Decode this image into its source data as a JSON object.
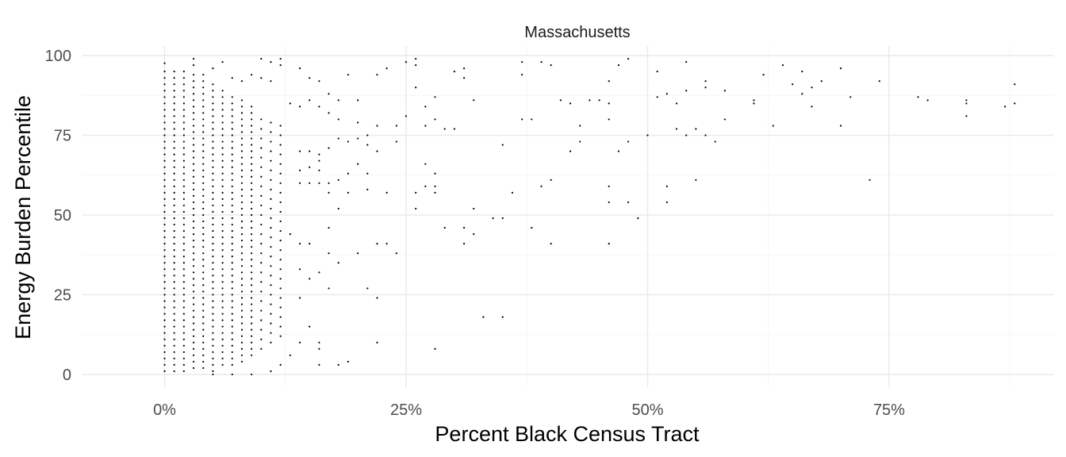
{
  "chart_data": {
    "type": "scatter",
    "facet_title": "Massachusetts",
    "xlabel": "Percent Black Census Tract",
    "ylabel": "Energy Burden Percentile",
    "xlim": [
      -0.085,
      0.92
    ],
    "ylim": [
      -4,
      103
    ],
    "x_ticks": [
      {
        "value": 0,
        "label": "0%"
      },
      {
        "value": 0.25,
        "label": "25%"
      },
      {
        "value": 0.5,
        "label": "50%"
      },
      {
        "value": 0.75,
        "label": "75%"
      }
    ],
    "y_ticks": [
      {
        "value": 0,
        "label": "0"
      },
      {
        "value": 25,
        "label": "25"
      },
      {
        "value": 50,
        "label": "50"
      },
      {
        "value": 75,
        "label": "75"
      },
      {
        "value": 100,
        "label": "100"
      }
    ],
    "x_minor": [
      0.125,
      0.375,
      0.625,
      0.875
    ],
    "y_minor": [
      12.5,
      37.5,
      62.5,
      87.5
    ],
    "grid": true,
    "point_color": "#000000",
    "dense_columns": [
      {
        "x": 0.0,
        "y_min": 1,
        "y_max": 95,
        "step": 2
      },
      {
        "x": 0.01,
        "y_min": 1,
        "y_max": 96,
        "step": 2
      },
      {
        "x": 0.02,
        "y_min": 1,
        "y_max": 95,
        "step": 2
      },
      {
        "x": 0.03,
        "y_min": 2,
        "y_max": 94,
        "step": 2
      },
      {
        "x": 0.04,
        "y_min": 2,
        "y_max": 92,
        "step": 2
      },
      {
        "x": 0.05,
        "y_min": 1,
        "y_max": 92,
        "step": 2
      },
      {
        "x": 0.06,
        "y_min": 3,
        "y_max": 90,
        "step": 2
      },
      {
        "x": 0.07,
        "y_min": 3,
        "y_max": 88,
        "step": 2
      },
      {
        "x": 0.08,
        "y_min": 4,
        "y_max": 86,
        "step": 2
      },
      {
        "x": 0.09,
        "y_min": 6,
        "y_max": 84,
        "step": 2
      },
      {
        "x": 0.1,
        "y_min": 8,
        "y_max": 82,
        "step": 3
      },
      {
        "x": 0.11,
        "y_min": 10,
        "y_max": 80,
        "step": 3
      },
      {
        "x": 0.12,
        "y_min": 12,
        "y_max": 78,
        "step": 3
      }
    ],
    "points": [
      [
        0.0,
        97.6
      ],
      [
        0.03,
        99
      ],
      [
        0.03,
        97
      ],
      [
        0.05,
        96
      ],
      [
        0.06,
        98
      ],
      [
        0.04,
        94
      ],
      [
        0.07,
        93
      ],
      [
        0.08,
        92
      ],
      [
        0.09,
        94
      ],
      [
        0.1,
        99
      ],
      [
        0.11,
        98
      ],
      [
        0.12,
        99
      ],
      [
        0.12,
        97
      ],
      [
        0.1,
        93
      ],
      [
        0.11,
        92
      ],
      [
        0.14,
        96
      ],
      [
        0.15,
        93
      ],
      [
        0.16,
        92
      ],
      [
        0.19,
        94
      ],
      [
        0.22,
        94
      ],
      [
        0.23,
        96
      ],
      [
        0.25,
        98
      ],
      [
        0.26,
        99
      ],
      [
        0.26,
        97
      ],
      [
        0.13,
        85
      ],
      [
        0.14,
        84
      ],
      [
        0.15,
        86
      ],
      [
        0.16,
        84
      ],
      [
        0.17,
        88
      ],
      [
        0.18,
        86
      ],
      [
        0.2,
        86
      ],
      [
        0.17,
        82
      ],
      [
        0.18,
        80
      ],
      [
        0.2,
        79
      ],
      [
        0.22,
        78
      ],
      [
        0.24,
        78
      ],
      [
        0.25,
        81
      ],
      [
        0.26,
        90
      ],
      [
        0.27,
        84
      ],
      [
        0.28,
        87
      ],
      [
        0.27,
        78
      ],
      [
        0.28,
        80
      ],
      [
        0.29,
        77
      ],
      [
        0.3,
        77
      ],
      [
        0.3,
        95
      ],
      [
        0.31,
        96
      ],
      [
        0.31,
        93
      ],
      [
        0.32,
        86
      ],
      [
        0.37,
        98
      ],
      [
        0.37,
        94
      ],
      [
        0.38,
        80
      ],
      [
        0.37,
        80
      ],
      [
        0.39,
        98
      ],
      [
        0.4,
        97
      ],
      [
        0.41,
        86
      ],
      [
        0.42,
        85
      ],
      [
        0.44,
        86
      ],
      [
        0.45,
        86
      ],
      [
        0.46,
        85
      ],
      [
        0.46,
        92
      ],
      [
        0.46,
        80
      ],
      [
        0.48,
        99
      ],
      [
        0.47,
        97
      ],
      [
        0.5,
        75
      ],
      [
        0.51,
        95
      ],
      [
        0.51,
        87
      ],
      [
        0.52,
        88
      ],
      [
        0.53,
        85
      ],
      [
        0.54,
        98
      ],
      [
        0.54,
        89
      ],
      [
        0.56,
        92
      ],
      [
        0.56,
        90
      ],
      [
        0.58,
        89
      ],
      [
        0.62,
        94
      ],
      [
        0.64,
        97
      ],
      [
        0.65,
        91
      ],
      [
        0.66,
        88
      ],
      [
        0.66,
        95
      ],
      [
        0.67,
        90
      ],
      [
        0.67,
        84
      ],
      [
        0.68,
        92
      ],
      [
        0.7,
        96
      ],
      [
        0.71,
        87
      ],
      [
        0.61,
        86
      ],
      [
        0.61,
        85
      ],
      [
        0.58,
        80
      ],
      [
        0.55,
        77
      ],
      [
        0.56,
        75
      ],
      [
        0.57,
        73
      ],
      [
        0.54,
        75
      ],
      [
        0.53,
        77
      ],
      [
        0.63,
        78
      ],
      [
        0.7,
        78
      ],
      [
        0.74,
        92
      ],
      [
        0.78,
        87
      ],
      [
        0.79,
        86
      ],
      [
        0.83,
        86
      ],
      [
        0.83,
        85
      ],
      [
        0.83,
        81
      ],
      [
        0.87,
        84
      ],
      [
        0.88,
        85
      ],
      [
        0.88,
        91
      ],
      [
        0.43,
        78
      ],
      [
        0.43,
        73
      ],
      [
        0.42,
        70
      ],
      [
        0.47,
        70
      ],
      [
        0.48,
        73
      ],
      [
        0.35,
        72
      ],
      [
        0.24,
        73
      ],
      [
        0.21,
        72
      ],
      [
        0.2,
        74
      ],
      [
        0.19,
        73
      ],
      [
        0.18,
        74
      ],
      [
        0.21,
        75
      ],
      [
        0.22,
        70
      ],
      [
        0.17,
        71
      ],
      [
        0.16,
        69
      ],
      [
        0.15,
        70
      ],
      [
        0.14,
        70
      ],
      [
        0.16,
        67
      ],
      [
        0.15,
        65
      ],
      [
        0.14,
        64
      ],
      [
        0.16,
        64
      ],
      [
        0.2,
        66
      ],
      [
        0.21,
        63
      ],
      [
        0.19,
        63
      ],
      [
        0.18,
        61
      ],
      [
        0.17,
        60
      ],
      [
        0.14,
        60
      ],
      [
        0.15,
        60
      ],
      [
        0.16,
        60
      ],
      [
        0.17,
        57
      ],
      [
        0.19,
        57
      ],
      [
        0.21,
        58
      ],
      [
        0.23,
        57
      ],
      [
        0.18,
        52
      ],
      [
        0.27,
        66
      ],
      [
        0.28,
        63
      ],
      [
        0.27,
        59
      ],
      [
        0.28,
        59
      ],
      [
        0.28,
        57
      ],
      [
        0.26,
        57
      ],
      [
        0.26,
        52
      ],
      [
        0.32,
        52
      ],
      [
        0.36,
        57
      ],
      [
        0.39,
        59
      ],
      [
        0.4,
        61
      ],
      [
        0.46,
        59
      ],
      [
        0.46,
        54
      ],
      [
        0.48,
        54
      ],
      [
        0.49,
        49
      ],
      [
        0.52,
        59
      ],
      [
        0.52,
        54
      ],
      [
        0.55,
        61
      ],
      [
        0.73,
        61
      ],
      [
        0.34,
        49
      ],
      [
        0.35,
        49
      ],
      [
        0.38,
        46
      ],
      [
        0.31,
        46
      ],
      [
        0.29,
        46
      ],
      [
        0.32,
        44
      ],
      [
        0.31,
        41
      ],
      [
        0.4,
        41
      ],
      [
        0.46,
        41
      ],
      [
        0.22,
        41
      ],
      [
        0.23,
        41
      ],
      [
        0.24,
        38
      ],
      [
        0.2,
        38
      ],
      [
        0.17,
        38
      ],
      [
        0.18,
        35
      ],
      [
        0.14,
        41
      ],
      [
        0.13,
        44
      ],
      [
        0.15,
        41
      ],
      [
        0.17,
        46
      ],
      [
        0.15,
        30
      ],
      [
        0.16,
        32
      ],
      [
        0.14,
        33
      ],
      [
        0.17,
        27
      ],
      [
        0.14,
        24
      ],
      [
        0.21,
        27
      ],
      [
        0.22,
        24
      ],
      [
        0.33,
        18
      ],
      [
        0.35,
        18
      ],
      [
        0.15,
        15
      ],
      [
        0.14,
        10
      ],
      [
        0.16,
        10
      ],
      [
        0.16,
        8
      ],
      [
        0.16,
        3
      ],
      [
        0.18,
        3
      ],
      [
        0.19,
        4
      ],
      [
        0.22,
        10
      ],
      [
        0.28,
        8
      ],
      [
        0.13,
        6
      ],
      [
        0.12,
        3
      ],
      [
        0.11,
        1
      ],
      [
        0.09,
        0
      ],
      [
        0.07,
        0
      ],
      [
        0.05,
        0
      ]
    ]
  }
}
